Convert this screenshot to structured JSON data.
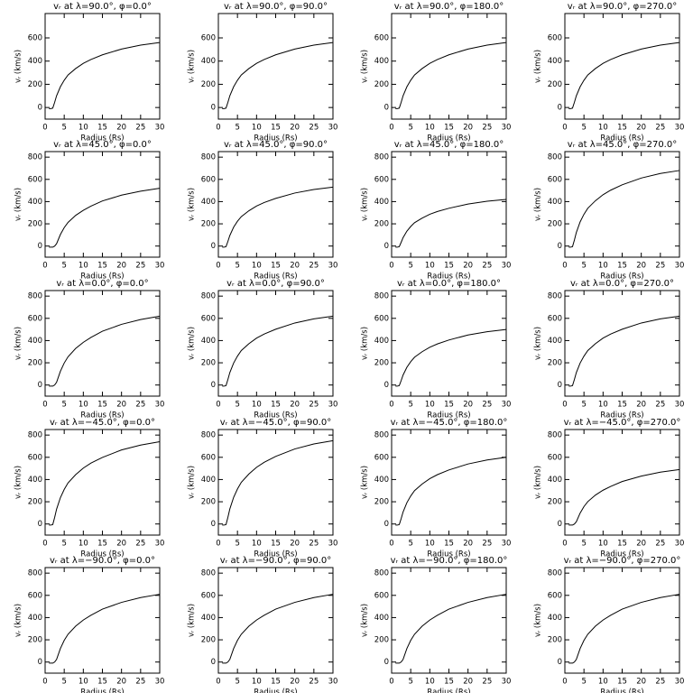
{
  "chart_data": [
    {
      "type": "line",
      "title": "vᵣ at λ=90.0°, φ=0.0°",
      "x_label": "Radius (Rs)",
      "y_label": "vᵣ (km/s)",
      "xlim": [
        0,
        30
      ],
      "ylim": [
        -100,
        810
      ],
      "xticks": [
        0,
        5,
        10,
        15,
        20,
        25,
        30
      ],
      "yticks": [
        0,
        200,
        400,
        600
      ],
      "color": "#000000",
      "x": [
        1,
        1.5,
        2,
        2.5,
        3,
        4,
        5,
        6,
        8,
        10,
        12,
        15,
        20,
        25,
        30
      ],
      "values": [
        -10,
        -10,
        -5,
        45,
        101,
        179,
        235,
        280,
        336,
        381,
        414,
        454,
        504,
        538,
        560
      ]
    },
    {
      "type": "line",
      "title": "vᵣ at λ=90.0°, φ=90.0°",
      "x_label": "Radius (Rs)",
      "y_label": "vᵣ (km/s)",
      "xlim": [
        0,
        30
      ],
      "ylim": [
        -100,
        810
      ],
      "xticks": [
        0,
        5,
        10,
        15,
        20,
        25,
        30
      ],
      "yticks": [
        0,
        200,
        400,
        600
      ],
      "color": "#000000",
      "x": [
        1,
        1.5,
        2,
        2.5,
        3,
        4,
        5,
        6,
        8,
        10,
        12,
        15,
        20,
        25,
        30
      ],
      "values": [
        -10,
        -10,
        -5,
        45,
        101,
        179,
        235,
        280,
        336,
        381,
        414,
        454,
        504,
        538,
        560
      ]
    },
    {
      "type": "line",
      "title": "vᵣ at λ=90.0°, φ=180.0°",
      "x_label": "Radius (Rs)",
      "y_label": "vᵣ (km/s)",
      "xlim": [
        0,
        30
      ],
      "ylim": [
        -100,
        810
      ],
      "xticks": [
        0,
        5,
        10,
        15,
        20,
        25,
        30
      ],
      "yticks": [
        0,
        200,
        400,
        600
      ],
      "color": "#000000",
      "x": [
        1,
        1.5,
        2,
        2.5,
        3,
        4,
        5,
        6,
        8,
        10,
        12,
        15,
        20,
        25,
        30
      ],
      "values": [
        -10,
        -10,
        -5,
        45,
        101,
        179,
        235,
        280,
        336,
        381,
        414,
        454,
        504,
        538,
        560
      ]
    },
    {
      "type": "line",
      "title": "vᵣ at λ=90.0°, φ=270.0°",
      "x_label": "Radius (Rs)",
      "y_label": "vᵣ (km/s)",
      "xlim": [
        0,
        30
      ],
      "ylim": [
        -100,
        810
      ],
      "xticks": [
        0,
        5,
        10,
        15,
        20,
        25,
        30
      ],
      "yticks": [
        0,
        200,
        400,
        600
      ],
      "color": "#000000",
      "x": [
        1,
        1.5,
        2,
        2.5,
        3,
        4,
        5,
        6,
        8,
        10,
        12,
        15,
        20,
        25,
        30
      ],
      "values": [
        -10,
        -10,
        -5,
        45,
        101,
        179,
        235,
        280,
        336,
        381,
        414,
        454,
        504,
        538,
        560
      ]
    },
    {
      "type": "line",
      "title": "vᵣ at λ=45.0°, φ=0.0°",
      "x_label": "Radius (Rs)",
      "y_label": "vᵣ (km/s)",
      "xlim": [
        0,
        30
      ],
      "ylim": [
        -100,
        850
      ],
      "xticks": [
        0,
        5,
        10,
        15,
        20,
        25,
        30
      ],
      "yticks": [
        0,
        200,
        400,
        600,
        800
      ],
      "color": "#000000",
      "x": [
        1,
        1.5,
        2,
        2.5,
        3,
        4,
        5,
        6,
        8,
        10,
        12,
        15,
        20,
        25,
        30
      ],
      "values": [
        -10,
        -10,
        -10,
        0,
        21,
        104,
        166,
        213,
        276,
        322,
        359,
        406,
        458,
        494,
        520
      ]
    },
    {
      "type": "line",
      "title": "vᵣ at λ=45.0°, φ=90.0°",
      "x_label": "Radius (Rs)",
      "y_label": "vᵣ (km/s)",
      "xlim": [
        0,
        30
      ],
      "ylim": [
        -100,
        850
      ],
      "xticks": [
        0,
        5,
        10,
        15,
        20,
        25,
        30
      ],
      "yticks": [
        0,
        200,
        400,
        600,
        800
      ],
      "color": "#000000",
      "x": [
        1,
        1.5,
        2,
        2.5,
        3,
        4,
        5,
        6,
        8,
        10,
        12,
        15,
        20,
        25,
        30
      ],
      "values": [
        -10,
        -10,
        -5,
        42,
        95,
        170,
        223,
        265,
        318,
        360,
        392,
        429,
        477,
        509,
        530
      ]
    },
    {
      "type": "line",
      "title": "vᵣ at λ=45.0°, φ=180.0°",
      "x_label": "Radius (Rs)",
      "y_label": "vᵣ (km/s)",
      "xlim": [
        0,
        30
      ],
      "ylim": [
        -100,
        850
      ],
      "xticks": [
        0,
        5,
        10,
        15,
        20,
        25,
        30
      ],
      "yticks": [
        0,
        200,
        400,
        600,
        800
      ],
      "color": "#000000",
      "x": [
        1,
        1.5,
        2,
        2.5,
        3,
        4,
        5,
        6,
        8,
        10,
        12,
        15,
        20,
        25,
        30
      ],
      "values": [
        -10,
        -10,
        -5,
        34,
        76,
        134,
        176,
        210,
        252,
        286,
        311,
        340,
        378,
        403,
        420
      ]
    },
    {
      "type": "line",
      "title": "vᵣ at λ=45.0°, φ=270.0°",
      "x_label": "Radius (Rs)",
      "y_label": "vᵣ (km/s)",
      "xlim": [
        0,
        30
      ],
      "ylim": [
        -100,
        850
      ],
      "xticks": [
        0,
        5,
        10,
        15,
        20,
        25,
        30
      ],
      "yticks": [
        0,
        200,
        400,
        600,
        800
      ],
      "color": "#000000",
      "x": [
        1,
        1.5,
        2,
        2.5,
        3,
        4,
        5,
        6,
        8,
        10,
        12,
        15,
        20,
        25,
        30
      ],
      "values": [
        -10,
        -10,
        -5,
        54,
        122,
        218,
        286,
        340,
        408,
        462,
        503,
        551,
        612,
        653,
        680
      ]
    },
    {
      "type": "line",
      "title": "vᵣ at λ=0.0°, φ=0.0°",
      "x_label": "Radius (Rs)",
      "y_label": "vᵣ (km/s)",
      "xlim": [
        0,
        30
      ],
      "ylim": [
        -100,
        850
      ],
      "xticks": [
        0,
        5,
        10,
        15,
        20,
        25,
        30
      ],
      "yticks": [
        0,
        200,
        400,
        600,
        800
      ],
      "color": "#000000",
      "x": [
        1,
        1.5,
        2,
        2.5,
        3,
        4,
        5,
        6,
        8,
        10,
        12,
        15,
        20,
        25,
        30
      ],
      "values": [
        -10,
        -10,
        -10,
        0,
        25,
        124,
        198,
        254,
        329,
        384,
        428,
        484,
        546,
        589,
        620
      ]
    },
    {
      "type": "line",
      "title": "vᵣ at λ=0.0°, φ=90.0°",
      "x_label": "Radius (Rs)",
      "y_label": "vᵣ (km/s)",
      "xlim": [
        0,
        30
      ],
      "ylim": [
        -100,
        850
      ],
      "xticks": [
        0,
        5,
        10,
        15,
        20,
        25,
        30
      ],
      "yticks": [
        0,
        200,
        400,
        600,
        800
      ],
      "color": "#000000",
      "x": [
        1,
        1.5,
        2,
        2.5,
        3,
        4,
        5,
        6,
        8,
        10,
        12,
        15,
        20,
        25,
        30
      ],
      "values": [
        -10,
        -10,
        -5,
        50,
        112,
        198,
        260,
        310,
        372,
        422,
        459,
        502,
        558,
        595,
        620
      ]
    },
    {
      "type": "line",
      "title": "vᵣ at λ=0.0°, φ=180.0°",
      "x_label": "Radius (Rs)",
      "y_label": "vᵣ (km/s)",
      "xlim": [
        0,
        30
      ],
      "ylim": [
        -100,
        850
      ],
      "xticks": [
        0,
        5,
        10,
        15,
        20,
        25,
        30
      ],
      "yticks": [
        0,
        200,
        400,
        600,
        800
      ],
      "color": "#000000",
      "x": [
        1,
        1.5,
        2,
        2.5,
        3,
        4,
        5,
        6,
        8,
        10,
        12,
        15,
        20,
        25,
        30
      ],
      "values": [
        -10,
        -10,
        -5,
        40,
        90,
        160,
        210,
        250,
        300,
        340,
        370,
        405,
        450,
        480,
        500
      ]
    },
    {
      "type": "line",
      "title": "vᵣ at λ=0.0°, φ=270.0°",
      "x_label": "Radius (Rs)",
      "y_label": "vᵣ (km/s)",
      "xlim": [
        0,
        30
      ],
      "ylim": [
        -100,
        850
      ],
      "xticks": [
        0,
        5,
        10,
        15,
        20,
        25,
        30
      ],
      "yticks": [
        0,
        200,
        400,
        600,
        800
      ],
      "color": "#000000",
      "x": [
        1,
        1.5,
        2,
        2.5,
        3,
        4,
        5,
        6,
        8,
        10,
        12,
        15,
        20,
        25,
        30
      ],
      "values": [
        -10,
        -10,
        -5,
        50,
        112,
        198,
        260,
        310,
        372,
        422,
        459,
        502,
        558,
        595,
        620
      ]
    },
    {
      "type": "line",
      "title": "vᵣ at λ=−45.0°, φ=0.0°",
      "x_label": "Radius (Rs)",
      "y_label": "vᵣ (km/s)",
      "xlim": [
        0,
        30
      ],
      "ylim": [
        -100,
        850
      ],
      "xticks": [
        0,
        5,
        10,
        15,
        20,
        25,
        30
      ],
      "yticks": [
        0,
        200,
        400,
        600,
        800
      ],
      "color": "#000000",
      "x": [
        1,
        1.5,
        2,
        2.5,
        3,
        4,
        5,
        6,
        8,
        10,
        12,
        15,
        20,
        25,
        30
      ],
      "values": [
        -10,
        -10,
        -5,
        59,
        133,
        237,
        311,
        370,
        444,
        503,
        548,
        599,
        666,
        710,
        740
      ]
    },
    {
      "type": "line",
      "title": "vᵣ at λ=−45.0°, φ=90.0°",
      "x_label": "Radius (Rs)",
      "y_label": "vᵣ (km/s)",
      "xlim": [
        0,
        30
      ],
      "ylim": [
        -100,
        850
      ],
      "xticks": [
        0,
        5,
        10,
        15,
        20,
        25,
        30
      ],
      "yticks": [
        0,
        200,
        400,
        600,
        800
      ],
      "color": "#000000",
      "x": [
        1,
        1.5,
        2,
        2.5,
        3,
        4,
        5,
        6,
        8,
        10,
        12,
        15,
        20,
        25,
        30
      ],
      "values": [
        -10,
        -10,
        -5,
        60,
        135,
        240,
        315,
        375,
        450,
        510,
        555,
        608,
        675,
        720,
        750
      ]
    },
    {
      "type": "line",
      "title": "vᵣ at λ=−45.0°, φ=180.0°",
      "x_label": "Radius (Rs)",
      "y_label": "vᵣ (km/s)",
      "xlim": [
        0,
        30
      ],
      "ylim": [
        -100,
        850
      ],
      "xticks": [
        0,
        5,
        10,
        15,
        20,
        25,
        30
      ],
      "yticks": [
        0,
        200,
        400,
        600,
        800
      ],
      "color": "#000000",
      "x": [
        1,
        1.5,
        2,
        2.5,
        3,
        4,
        5,
        6,
        8,
        10,
        12,
        15,
        20,
        25,
        30
      ],
      "values": [
        -10,
        -10,
        -5,
        48,
        108,
        192,
        252,
        300,
        360,
        408,
        444,
        486,
        540,
        576,
        600
      ]
    },
    {
      "type": "line",
      "title": "vᵣ at λ=−45.0°, φ=270.0°",
      "x_label": "Radius (Rs)",
      "y_label": "vᵣ (km/s)",
      "xlim": [
        0,
        30
      ],
      "ylim": [
        -100,
        850
      ],
      "xticks": [
        0,
        5,
        10,
        15,
        20,
        25,
        30
      ],
      "yticks": [
        0,
        200,
        400,
        600,
        800
      ],
      "color": "#000000",
      "x": [
        1,
        1.5,
        2,
        2.5,
        3,
        4,
        5,
        6,
        8,
        10,
        12,
        15,
        20,
        25,
        30
      ],
      "values": [
        -10,
        -10,
        -10,
        0,
        20,
        98,
        157,
        201,
        260,
        304,
        338,
        382,
        431,
        466,
        490
      ]
    },
    {
      "type": "line",
      "title": "vᵣ at λ=−90.0°, φ=0.0°",
      "x_label": "Radius (Rs)",
      "y_label": "vᵣ (km/s)",
      "xlim": [
        0,
        30
      ],
      "ylim": [
        -100,
        850
      ],
      "xticks": [
        0,
        5,
        10,
        15,
        20,
        25,
        30
      ],
      "yticks": [
        0,
        200,
        400,
        600,
        800
      ],
      "color": "#000000",
      "x": [
        1,
        1.5,
        2,
        2.5,
        3,
        4,
        5,
        6,
        8,
        10,
        12,
        15,
        20,
        25,
        30
      ],
      "values": [
        -10,
        -10,
        -10,
        0,
        24,
        122,
        195,
        250,
        323,
        378,
        421,
        476,
        537,
        580,
        610
      ]
    },
    {
      "type": "line",
      "title": "vᵣ at λ=−90.0°, φ=90.0°",
      "x_label": "Radius (Rs)",
      "y_label": "vᵣ (km/s)",
      "xlim": [
        0,
        30
      ],
      "ylim": [
        -100,
        850
      ],
      "xticks": [
        0,
        5,
        10,
        15,
        20,
        25,
        30
      ],
      "yticks": [
        0,
        200,
        400,
        600,
        800
      ],
      "color": "#000000",
      "x": [
        1,
        1.5,
        2,
        2.5,
        3,
        4,
        5,
        6,
        8,
        10,
        12,
        15,
        20,
        25,
        30
      ],
      "values": [
        -10,
        -10,
        -10,
        0,
        24,
        122,
        195,
        250,
        323,
        378,
        421,
        476,
        537,
        580,
        610
      ]
    },
    {
      "type": "line",
      "title": "vᵣ at λ=−90.0°, φ=180.0°",
      "x_label": "Radius (Rs)",
      "y_label": "vᵣ (km/s)",
      "xlim": [
        0,
        30
      ],
      "ylim": [
        -100,
        850
      ],
      "xticks": [
        0,
        5,
        10,
        15,
        20,
        25,
        30
      ],
      "yticks": [
        0,
        200,
        400,
        600,
        800
      ],
      "color": "#000000",
      "x": [
        1,
        1.5,
        2,
        2.5,
        3,
        4,
        5,
        6,
        8,
        10,
        12,
        15,
        20,
        25,
        30
      ],
      "values": [
        -10,
        -10,
        -10,
        0,
        24,
        122,
        195,
        250,
        323,
        378,
        421,
        476,
        537,
        580,
        610
      ]
    },
    {
      "type": "line",
      "title": "vᵣ at λ=−90.0°, φ=270.0°",
      "x_label": "Radius (Rs)",
      "y_label": "vᵣ (km/s)",
      "xlim": [
        0,
        30
      ],
      "ylim": [
        -100,
        850
      ],
      "xticks": [
        0,
        5,
        10,
        15,
        20,
        25,
        30
      ],
      "yticks": [
        0,
        200,
        400,
        600,
        800
      ],
      "color": "#000000",
      "x": [
        1,
        1.5,
        2,
        2.5,
        3,
        4,
        5,
        6,
        8,
        10,
        12,
        15,
        20,
        25,
        30
      ],
      "values": [
        -10,
        -10,
        -10,
        0,
        24,
        122,
        195,
        250,
        323,
        378,
        421,
        476,
        537,
        580,
        610
      ]
    }
  ]
}
